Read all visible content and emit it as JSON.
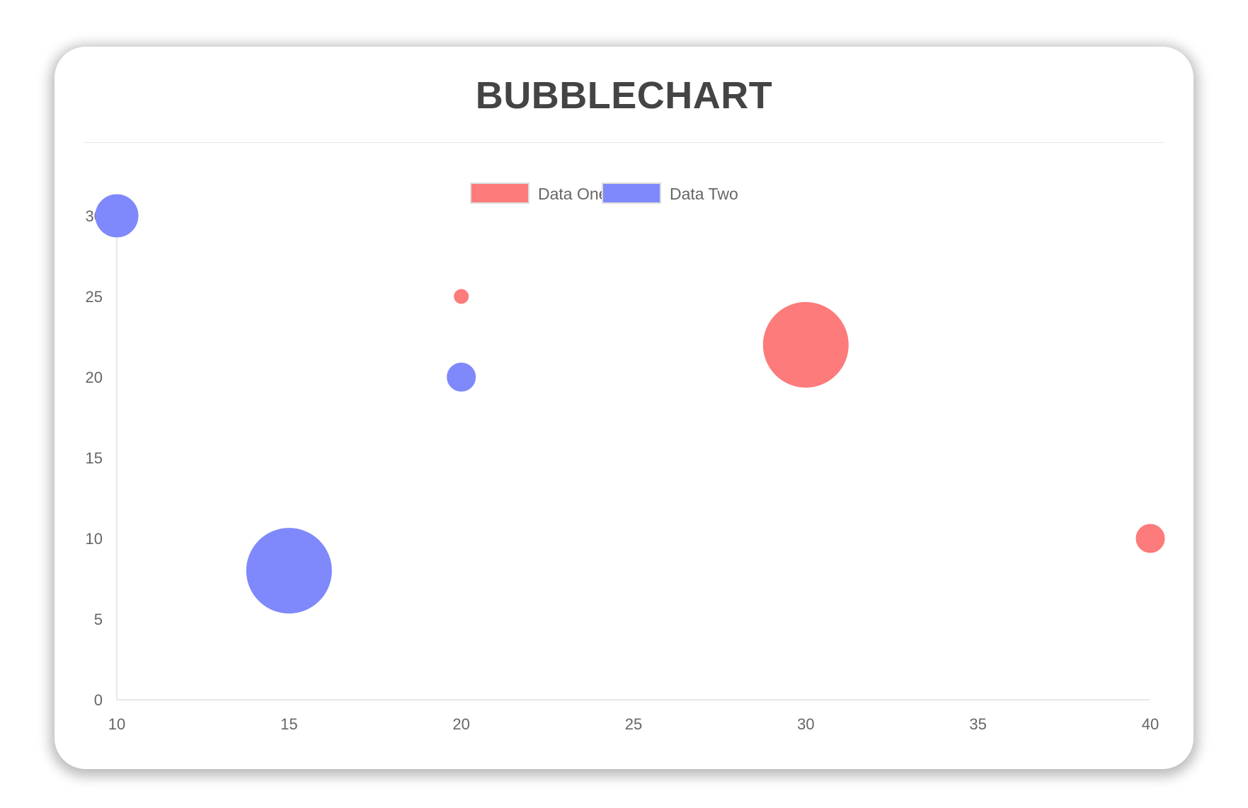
{
  "chart_data": {
    "type": "bubble",
    "title": "BUBBLECHART",
    "xlim": [
      10,
      40
    ],
    "ylim": [
      0,
      30
    ],
    "x_ticks": [
      "10",
      "15",
      "20",
      "25",
      "30",
      "35",
      "40"
    ],
    "y_ticks": [
      "0",
      "5",
      "10",
      "15",
      "20",
      "25",
      "30"
    ],
    "grid": false,
    "legend_position": "top",
    "series": [
      {
        "name": "Data One",
        "color": "#fd7b7b",
        "points": [
          {
            "x": 20,
            "y": 25,
            "r": 5
          },
          {
            "x": 30,
            "y": 22,
            "r": 30
          },
          {
            "x": 40,
            "y": 10,
            "r": 10
          }
        ]
      },
      {
        "name": "Data Two",
        "color": "#7f89fb",
        "points": [
          {
            "x": 10,
            "y": 30,
            "r": 15
          },
          {
            "x": 20,
            "y": 20,
            "r": 10
          },
          {
            "x": 15,
            "y": 8,
            "r": 30
          }
        ]
      }
    ]
  }
}
